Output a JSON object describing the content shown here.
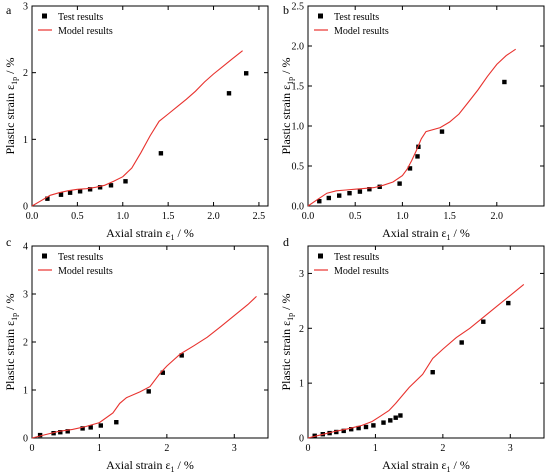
{
  "legend": {
    "test_label": "Test results",
    "model_label": "Model results"
  },
  "colors": {
    "model": "#e8322e",
    "test": "#000000",
    "axis": "#000000"
  },
  "chart_data": [
    {
      "type": "line",
      "panel_label": "a",
      "xlabel": "Axial strain ε",
      "xlabel_sub": "1",
      "xlabel_unit": " / %",
      "ylabel": "Plastic strain ε",
      "ylabel_sub": "1p",
      "ylabel_unit": " / %",
      "xlim": [
        0,
        2.6
      ],
      "ylim": [
        0,
        3
      ],
      "xticks": [
        0,
        0.5,
        1,
        1.5,
        2,
        2.5
      ],
      "xtick_labels": [
        "0.0",
        "0.5",
        "1.0",
        "1.5",
        "2.0",
        "2.5"
      ],
      "yticks": [
        0,
        1,
        2,
        3
      ],
      "ytick_labels": [
        "0",
        "1",
        "2",
        "3"
      ],
      "legend_position": "top-left",
      "series": [
        {
          "name": "Test results",
          "kind": "scatter",
          "points": [
            [
              0.17,
              0.11
            ],
            [
              0.32,
              0.17
            ],
            [
              0.42,
              0.2
            ],
            [
              0.53,
              0.22
            ],
            [
              0.64,
              0.25
            ],
            [
              0.75,
              0.28
            ],
            [
              0.87,
              0.31
            ],
            [
              1.03,
              0.37
            ],
            [
              1.42,
              0.79
            ],
            [
              2.17,
              1.69
            ],
            [
              2.36,
              1.99
            ]
          ]
        },
        {
          "name": "Model results",
          "kind": "line",
          "points": [
            [
              0,
              0
            ],
            [
              0.1,
              0.08
            ],
            [
              0.2,
              0.16
            ],
            [
              0.3,
              0.2
            ],
            [
              0.4,
              0.23
            ],
            [
              0.5,
              0.25
            ],
            [
              0.6,
              0.26
            ],
            [
              0.7,
              0.28
            ],
            [
              0.8,
              0.31
            ],
            [
              0.9,
              0.37
            ],
            [
              1.0,
              0.44
            ],
            [
              1.1,
              0.57
            ],
            [
              1.2,
              0.8
            ],
            [
              1.3,
              1.05
            ],
            [
              1.4,
              1.27
            ],
            [
              1.5,
              1.38
            ],
            [
              1.6,
              1.49
            ],
            [
              1.7,
              1.6
            ],
            [
              1.8,
              1.72
            ],
            [
              1.9,
              1.86
            ],
            [
              2.0,
              1.98
            ],
            [
              2.1,
              2.09
            ],
            [
              2.2,
              2.2
            ],
            [
              2.32,
              2.33
            ]
          ]
        }
      ]
    },
    {
      "type": "line",
      "panel_label": "b",
      "xlabel": "Axial strain ε",
      "xlabel_sub": "1",
      "xlabel_unit": " / %",
      "ylabel": "Plastic strain ε",
      "ylabel_sub": "1p",
      "ylabel_unit": " / %",
      "xlim": [
        0,
        2.5
      ],
      "ylim": [
        0,
        2.5
      ],
      "xticks": [
        0,
        0.5,
        1,
        1.5,
        2
      ],
      "xtick_labels": [
        "0.0",
        "0.5",
        "1.0",
        "1.5",
        "2.0"
      ],
      "yticks": [
        0,
        0.5,
        1,
        1.5,
        2,
        2.5
      ],
      "ytick_labels": [
        "0.0",
        "0.5",
        "1.0",
        "1.5",
        "2.0",
        "2.5"
      ],
      "legend_position": "top-left",
      "series": [
        {
          "name": "Test results",
          "kind": "scatter",
          "points": [
            [
              0.12,
              0.06
            ],
            [
              0.22,
              0.1
            ],
            [
              0.33,
              0.13
            ],
            [
              0.44,
              0.16
            ],
            [
              0.55,
              0.18
            ],
            [
              0.65,
              0.21
            ],
            [
              0.76,
              0.24
            ],
            [
              0.97,
              0.28
            ],
            [
              1.08,
              0.47
            ],
            [
              1.16,
              0.62
            ],
            [
              1.17,
              0.74
            ],
            [
              1.42,
              0.93
            ],
            [
              2.08,
              1.55
            ]
          ]
        },
        {
          "name": "Model results",
          "kind": "line",
          "points": [
            [
              0,
              0
            ],
            [
              0.1,
              0.08
            ],
            [
              0.2,
              0.16
            ],
            [
              0.3,
              0.19
            ],
            [
              0.4,
              0.2
            ],
            [
              0.5,
              0.21
            ],
            [
              0.6,
              0.22
            ],
            [
              0.7,
              0.23
            ],
            [
              0.8,
              0.26
            ],
            [
              0.9,
              0.3
            ],
            [
              1.0,
              0.38
            ],
            [
              1.05,
              0.46
            ],
            [
              1.1,
              0.57
            ],
            [
              1.15,
              0.7
            ],
            [
              1.2,
              0.84
            ],
            [
              1.25,
              0.93
            ],
            [
              1.4,
              0.98
            ],
            [
              1.5,
              1.05
            ],
            [
              1.6,
              1.15
            ],
            [
              1.7,
              1.3
            ],
            [
              1.8,
              1.45
            ],
            [
              1.9,
              1.62
            ],
            [
              2.0,
              1.77
            ],
            [
              2.1,
              1.88
            ],
            [
              2.2,
              1.96
            ]
          ]
        }
      ]
    },
    {
      "type": "line",
      "panel_label": "c",
      "xlabel": "Axial strain ε",
      "xlabel_sub": "1",
      "xlabel_unit": " / %",
      "ylabel": "Plastic strain ε",
      "ylabel_sub": "1p",
      "ylabel_unit": " / %",
      "xlim": [
        0,
        3.5
      ],
      "ylim": [
        0,
        4
      ],
      "xticks": [
        0,
        1,
        2,
        3
      ],
      "xtick_labels": [
        "0",
        "1",
        "2",
        "3"
      ],
      "yticks": [
        0,
        1,
        2,
        3,
        4
      ],
      "ytick_labels": [
        "0",
        "1",
        "2",
        "3",
        "4"
      ],
      "legend_position": "top-left",
      "series": [
        {
          "name": "Test results",
          "kind": "scatter",
          "points": [
            [
              0.12,
              0.06
            ],
            [
              0.32,
              0.1
            ],
            [
              0.42,
              0.12
            ],
            [
              0.53,
              0.14
            ],
            [
              0.75,
              0.2
            ],
            [
              0.87,
              0.22
            ],
            [
              1.02,
              0.26
            ],
            [
              1.25,
              0.33
            ],
            [
              1.73,
              0.97
            ],
            [
              1.94,
              1.36
            ],
            [
              2.22,
              1.72
            ]
          ]
        },
        {
          "name": "Model results",
          "kind": "line",
          "points": [
            [
              0,
              0
            ],
            [
              0.2,
              0.07
            ],
            [
              0.4,
              0.14
            ],
            [
              0.6,
              0.18
            ],
            [
              0.8,
              0.24
            ],
            [
              1.0,
              0.32
            ],
            [
              1.2,
              0.52
            ],
            [
              1.3,
              0.72
            ],
            [
              1.4,
              0.84
            ],
            [
              1.6,
              0.96
            ],
            [
              1.75,
              1.07
            ],
            [
              1.9,
              1.35
            ],
            [
              2.0,
              1.5
            ],
            [
              2.2,
              1.75
            ],
            [
              2.4,
              1.92
            ],
            [
              2.6,
              2.1
            ],
            [
              2.8,
              2.32
            ],
            [
              3.0,
              2.55
            ],
            [
              3.2,
              2.78
            ],
            [
              3.33,
              2.95
            ]
          ]
        }
      ]
    },
    {
      "type": "line",
      "panel_label": "d",
      "xlabel": "Axial strain ε",
      "xlabel_sub": "1",
      "xlabel_unit": " / %",
      "ylabel": "Plastic strain ε",
      "ylabel_sub": "1p",
      "ylabel_unit": " / %",
      "xlim": [
        0,
        3.5
      ],
      "ylim": [
        0,
        3.5
      ],
      "xticks": [
        0,
        1,
        2,
        3
      ],
      "xtick_labels": [
        "0",
        "1",
        "2",
        "3"
      ],
      "yticks": [
        0,
        1,
        2,
        3
      ],
      "ytick_labels": [
        "0",
        "1",
        "2",
        "3"
      ],
      "legend_position": "top-left",
      "series": [
        {
          "name": "Test results",
          "kind": "scatter",
          "points": [
            [
              0.1,
              0.04
            ],
            [
              0.22,
              0.07
            ],
            [
              0.32,
              0.09
            ],
            [
              0.42,
              0.11
            ],
            [
              0.53,
              0.13
            ],
            [
              0.64,
              0.16
            ],
            [
              0.75,
              0.18
            ],
            [
              0.86,
              0.2
            ],
            [
              0.97,
              0.23
            ],
            [
              1.12,
              0.28
            ],
            [
              1.22,
              0.32
            ],
            [
              1.3,
              0.37
            ],
            [
              1.37,
              0.41
            ],
            [
              1.85,
              1.2
            ],
            [
              2.28,
              1.74
            ],
            [
              2.6,
              2.12
            ],
            [
              2.97,
              2.46
            ]
          ]
        },
        {
          "name": "Model results",
          "kind": "line",
          "points": [
            [
              0,
              0
            ],
            [
              0.2,
              0.06
            ],
            [
              0.4,
              0.12
            ],
            [
              0.6,
              0.17
            ],
            [
              0.8,
              0.23
            ],
            [
              0.95,
              0.3
            ],
            [
              1.05,
              0.38
            ],
            [
              1.2,
              0.5
            ],
            [
              1.3,
              0.63
            ],
            [
              1.5,
              0.92
            ],
            [
              1.7,
              1.16
            ],
            [
              1.85,
              1.45
            ],
            [
              2.0,
              1.62
            ],
            [
              2.2,
              1.83
            ],
            [
              2.4,
              2.0
            ],
            [
              2.6,
              2.2
            ],
            [
              2.8,
              2.4
            ],
            [
              3.0,
              2.6
            ],
            [
              3.2,
              2.8
            ]
          ]
        }
      ]
    }
  ]
}
